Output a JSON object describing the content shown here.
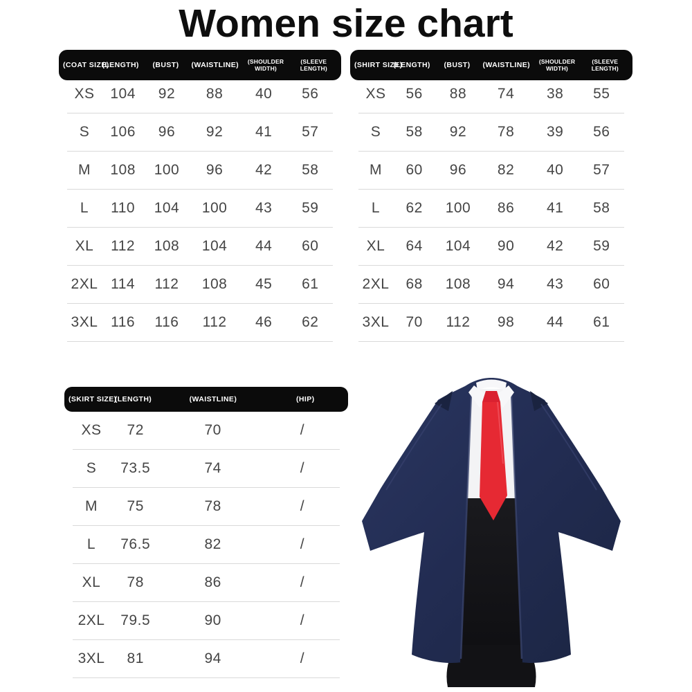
{
  "title": "Women size chart",
  "tables": {
    "coat": {
      "headers": [
        "(COAT SIZE)",
        "(LENGTH)",
        "(BUST)",
        "(WAISTLINE)",
        "(SHOULDER WIDTH)",
        "(SLEEVE LENGTH)"
      ],
      "rows": [
        [
          "XS",
          "104",
          "92",
          "88",
          "40",
          "56"
        ],
        [
          "S",
          "106",
          "96",
          "92",
          "41",
          "57"
        ],
        [
          "M",
          "108",
          "100",
          "96",
          "42",
          "58"
        ],
        [
          "L",
          "110",
          "104",
          "100",
          "43",
          "59"
        ],
        [
          "XL",
          "112",
          "108",
          "104",
          "44",
          "60"
        ],
        [
          "2XL",
          "114",
          "112",
          "108",
          "45",
          "61"
        ],
        [
          "3XL",
          "116",
          "116",
          "112",
          "46",
          "62"
        ]
      ]
    },
    "shirt": {
      "headers": [
        "(SHIRT SIZE)",
        "(LENGTH)",
        "(BUST)",
        "(WAISTLINE)",
        "(SHOULDER WIDTH)",
        "(SLEEVE LENGTH)"
      ],
      "rows": [
        [
          "XS",
          "56",
          "88",
          "74",
          "38",
          "55"
        ],
        [
          "S",
          "58",
          "92",
          "78",
          "39",
          "56"
        ],
        [
          "M",
          "60",
          "96",
          "82",
          "40",
          "57"
        ],
        [
          "L",
          "62",
          "100",
          "86",
          "41",
          "58"
        ],
        [
          "XL",
          "64",
          "104",
          "90",
          "42",
          "59"
        ],
        [
          "2XL",
          "68",
          "108",
          "94",
          "43",
          "60"
        ],
        [
          "3XL",
          "70",
          "112",
          "98",
          "44",
          "61"
        ]
      ]
    },
    "skirt": {
      "headers": [
        "(SKIRT SIZE)",
        "(LENGTH)",
        "(WAISTLINE)",
        "(HIP)"
      ],
      "rows": [
        [
          "XS",
          "72",
          "70",
          "/"
        ],
        [
          "S",
          "73.5",
          "74",
          "/"
        ],
        [
          "M",
          "75",
          "78",
          "/"
        ],
        [
          "L",
          "76.5",
          "82",
          "/"
        ],
        [
          "XL",
          "78",
          "86",
          "/"
        ],
        [
          "2XL",
          "79.5",
          "90",
          "/"
        ],
        [
          "3XL",
          "81",
          "94",
          "/"
        ]
      ]
    }
  },
  "colors": {
    "background": "#ffffff",
    "header_bar": "#0b0b0b",
    "header_text": "#ffffff",
    "value_text": "#454545",
    "divider": "#d9d9d9",
    "robe_navy": "#222c52",
    "robe_navy_dark": "#1b2542",
    "tie_red": "#e62933",
    "shirt_white": "#f4f4f6",
    "skirt_black": "#17171a"
  }
}
